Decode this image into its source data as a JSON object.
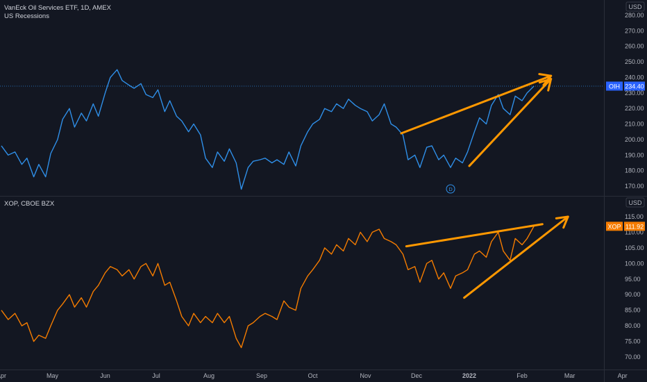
{
  "panes": [
    {
      "id": "oih",
      "title": "VanEck Oil Services ETF, 1D, AMEX",
      "subtitle": "US Recessions",
      "currency_label": "USD",
      "symbol_tag": "OIH",
      "last_value_label": "234.40",
      "last_value": 234.4,
      "series_color": "#2f8fe8",
      "tag_color": "#2962ff",
      "y_ticks": [
        170,
        180,
        190,
        200,
        210,
        220,
        230,
        240,
        250,
        260,
        270,
        280
      ],
      "y_tick_labels": [
        "170.00",
        "180.00",
        "190.00",
        "200.00",
        "210.00",
        "220.00",
        "230.00",
        "240.00",
        "250.00",
        "260.00",
        "270.00",
        "280.00"
      ],
      "dividend_marker": "D"
    },
    {
      "id": "xop",
      "title": "XOP, CBOE BZX",
      "currency_label": "USD",
      "symbol_tag": "XOP",
      "last_value_label": "111.92",
      "last_value": 111.92,
      "series_color": "#f57c00",
      "tag_color": "#f57c00",
      "y_ticks": [
        70,
        75,
        80,
        85,
        90,
        95,
        100,
        105,
        110,
        115
      ],
      "y_tick_labels": [
        "70.00",
        "75.00",
        "80.00",
        "85.00",
        "90.00",
        "95.00",
        "100.00",
        "105.00",
        "110.00",
        "115.00"
      ]
    }
  ],
  "x_axis_labels": [
    "Apr",
    "May",
    "Jun",
    "Jul",
    "Aug",
    "Sep",
    "Oct",
    "Nov",
    "Dec",
    "2022",
    "Feb",
    "Mar",
    "Apr"
  ],
  "annotation_color": "#ff9800",
  "chart_data": [
    {
      "type": "line",
      "title": "VanEck Oil Services ETF, 1D, AMEX",
      "ylabel": "USD",
      "ylim": [
        165,
        285
      ],
      "grid": false,
      "series": [
        {
          "name": "OIH",
          "points": [
            [
              "2021-04-01",
              196
            ],
            [
              "2021-04-05",
              190
            ],
            [
              "2021-04-09",
              192
            ],
            [
              "2021-04-13",
              184
            ],
            [
              "2021-04-16",
              188
            ],
            [
              "2021-04-20",
              176
            ],
            [
              "2021-04-23",
              184
            ],
            [
              "2021-04-27",
              176
            ],
            [
              "2021-04-30",
              191
            ],
            [
              "2021-05-04",
              200
            ],
            [
              "2021-05-07",
              213
            ],
            [
              "2021-05-11",
              220
            ],
            [
              "2021-05-14",
              208
            ],
            [
              "2021-05-18",
              217
            ],
            [
              "2021-05-21",
              212
            ],
            [
              "2021-05-25",
              223
            ],
            [
              "2021-05-28",
              215
            ],
            [
              "2021-06-01",
              230
            ],
            [
              "2021-06-04",
              240
            ],
            [
              "2021-06-08",
              245
            ],
            [
              "2021-06-11",
              238
            ],
            [
              "2021-06-15",
              235
            ],
            [
              "2021-06-18",
              233
            ],
            [
              "2021-06-22",
              236
            ],
            [
              "2021-06-25",
              229
            ],
            [
              "2021-06-29",
              227
            ],
            [
              "2021-07-02",
              232
            ],
            [
              "2021-07-06",
              218
            ],
            [
              "2021-07-09",
              225
            ],
            [
              "2021-07-13",
              215
            ],
            [
              "2021-07-16",
              212
            ],
            [
              "2021-07-20",
              205
            ],
            [
              "2021-07-23",
              210
            ],
            [
              "2021-07-27",
              203
            ],
            [
              "2021-07-30",
              188
            ],
            [
              "2021-08-03",
              182
            ],
            [
              "2021-08-06",
              192
            ],
            [
              "2021-08-10",
              186
            ],
            [
              "2021-08-13",
              194
            ],
            [
              "2021-08-17",
              185
            ],
            [
              "2021-08-20",
              168
            ],
            [
              "2021-08-24",
              182
            ],
            [
              "2021-08-27",
              186
            ],
            [
              "2021-08-31",
              187
            ],
            [
              "2021-09-03",
              188
            ],
            [
              "2021-09-07",
              185
            ],
            [
              "2021-09-10",
              187
            ],
            [
              "2021-09-14",
              184
            ],
            [
              "2021-09-17",
              192
            ],
            [
              "2021-09-21",
              183
            ],
            [
              "2021-09-24",
              196
            ],
            [
              "2021-09-28",
              205
            ],
            [
              "2021-10-01",
              210
            ],
            [
              "2021-10-05",
              213
            ],
            [
              "2021-10-08",
              220
            ],
            [
              "2021-10-12",
              218
            ],
            [
              "2021-10-15",
              223
            ],
            [
              "2021-10-19",
              220
            ],
            [
              "2021-10-22",
              226
            ],
            [
              "2021-10-26",
              222
            ],
            [
              "2021-10-29",
              220
            ],
            [
              "2021-11-02",
              218
            ],
            [
              "2021-11-05",
              212
            ],
            [
              "2021-11-09",
              216
            ],
            [
              "2021-11-12",
              223
            ],
            [
              "2021-11-16",
              210
            ],
            [
              "2021-11-19",
              208
            ],
            [
              "2021-11-23",
              203
            ],
            [
              "2021-11-26",
              187
            ],
            [
              "2021-11-30",
              190
            ],
            [
              "2021-12-03",
              182
            ],
            [
              "2021-12-07",
              195
            ],
            [
              "2021-12-10",
              196
            ],
            [
              "2021-12-14",
              187
            ],
            [
              "2021-12-17",
              190
            ],
            [
              "2021-12-21",
              182
            ],
            [
              "2021-12-24",
              188
            ],
            [
              "2021-12-28",
              185
            ],
            [
              "2021-12-31",
              192
            ],
            [
              "2022-01-04",
              205
            ],
            [
              "2022-01-07",
              214
            ],
            [
              "2022-01-11",
              210
            ],
            [
              "2022-01-14",
              222
            ],
            [
              "2022-01-18",
              229
            ],
            [
              "2022-01-21",
              220
            ],
            [
              "2022-01-25",
              216
            ],
            [
              "2022-01-28",
              228
            ],
            [
              "2022-02-01",
              225
            ],
            [
              "2022-02-04",
              230
            ],
            [
              "2022-02-08",
              234.4
            ]
          ]
        }
      ],
      "annotations": [
        {
          "type": "arrow",
          "from": [
            "2021-11-22",
            204
          ],
          "to": [
            "2022-02-18",
            241
          ]
        },
        {
          "type": "arrow",
          "from": [
            "2022-01-01",
            183
          ],
          "to": [
            "2022-02-18",
            239
          ]
        }
      ]
    },
    {
      "type": "line",
      "title": "XOP, CBOE BZX",
      "ylabel": "USD",
      "ylim": [
        67,
        117.5
      ],
      "grid": false,
      "series": [
        {
          "name": "XOP",
          "points": [
            [
              "2021-04-01",
              85
            ],
            [
              "2021-04-05",
              82
            ],
            [
              "2021-04-09",
              84
            ],
            [
              "2021-04-13",
              80
            ],
            [
              "2021-04-16",
              81
            ],
            [
              "2021-04-20",
              75
            ],
            [
              "2021-04-23",
              77
            ],
            [
              "2021-04-27",
              76
            ],
            [
              "2021-04-30",
              80
            ],
            [
              "2021-05-04",
              85
            ],
            [
              "2021-05-07",
              87
            ],
            [
              "2021-05-11",
              90
            ],
            [
              "2021-05-14",
              86
            ],
            [
              "2021-05-18",
              89
            ],
            [
              "2021-05-21",
              86
            ],
            [
              "2021-05-25",
              91
            ],
            [
              "2021-05-28",
              93
            ],
            [
              "2021-06-01",
              97
            ],
            [
              "2021-06-04",
              99
            ],
            [
              "2021-06-08",
              98
            ],
            [
              "2021-06-11",
              96
            ],
            [
              "2021-06-15",
              98
            ],
            [
              "2021-06-18",
              95
            ],
            [
              "2021-06-22",
              99
            ],
            [
              "2021-06-25",
              100
            ],
            [
              "2021-06-29",
              96
            ],
            [
              "2021-07-02",
              100
            ],
            [
              "2021-07-06",
              93
            ],
            [
              "2021-07-09",
              94
            ],
            [
              "2021-07-13",
              88
            ],
            [
              "2021-07-16",
              83
            ],
            [
              "2021-07-20",
              80
            ],
            [
              "2021-07-23",
              84
            ],
            [
              "2021-07-27",
              81
            ],
            [
              "2021-07-30",
              83
            ],
            [
              "2021-08-03",
              81
            ],
            [
              "2021-08-06",
              84
            ],
            [
              "2021-08-10",
              81
            ],
            [
              "2021-08-13",
              83
            ],
            [
              "2021-08-17",
              76
            ],
            [
              "2021-08-20",
              73
            ],
            [
              "2021-08-24",
              80
            ],
            [
              "2021-08-27",
              81
            ],
            [
              "2021-08-31",
              83
            ],
            [
              "2021-09-03",
              84
            ],
            [
              "2021-09-07",
              83
            ],
            [
              "2021-09-10",
              82
            ],
            [
              "2021-09-14",
              88
            ],
            [
              "2021-09-17",
              86
            ],
            [
              "2021-09-21",
              85
            ],
            [
              "2021-09-24",
              92
            ],
            [
              "2021-09-28",
              96
            ],
            [
              "2021-10-01",
              98
            ],
            [
              "2021-10-05",
              101
            ],
            [
              "2021-10-08",
              105
            ],
            [
              "2021-10-12",
              103
            ],
            [
              "2021-10-15",
              106
            ],
            [
              "2021-10-19",
              104
            ],
            [
              "2021-10-22",
              108
            ],
            [
              "2021-10-26",
              106
            ],
            [
              "2021-10-29",
              110
            ],
            [
              "2021-11-02",
              107
            ],
            [
              "2021-11-05",
              110
            ],
            [
              "2021-11-09",
              111
            ],
            [
              "2021-11-12",
              108
            ],
            [
              "2021-11-16",
              107
            ],
            [
              "2021-11-19",
              106
            ],
            [
              "2021-11-23",
              103
            ],
            [
              "2021-11-26",
              98
            ],
            [
              "2021-11-30",
              99
            ],
            [
              "2021-12-03",
              94
            ],
            [
              "2021-12-07",
              100
            ],
            [
              "2021-12-10",
              101
            ],
            [
              "2021-12-14",
              95
            ],
            [
              "2021-12-17",
              97
            ],
            [
              "2021-12-21",
              92
            ],
            [
              "2021-12-24",
              96
            ],
            [
              "2021-12-28",
              97
            ],
            [
              "2021-12-31",
              98
            ],
            [
              "2022-01-04",
              103
            ],
            [
              "2022-01-07",
              104
            ],
            [
              "2022-01-11",
              102
            ],
            [
              "2022-01-14",
              107
            ],
            [
              "2022-01-18",
              110
            ],
            [
              "2022-01-21",
              104
            ],
            [
              "2022-01-25",
              101
            ],
            [
              "2022-01-28",
              108
            ],
            [
              "2022-02-01",
              106
            ],
            [
              "2022-02-04",
              108
            ],
            [
              "2022-02-08",
              111.92
            ]
          ]
        }
      ],
      "annotations": [
        {
          "type": "line",
          "from": [
            "2021-11-25",
            105.5
          ],
          "to": [
            "2022-02-13",
            112.6
          ]
        },
        {
          "type": "arrow",
          "from": [
            "2021-12-29",
            89
          ],
          "to": [
            "2022-02-28",
            115
          ]
        }
      ]
    }
  ]
}
